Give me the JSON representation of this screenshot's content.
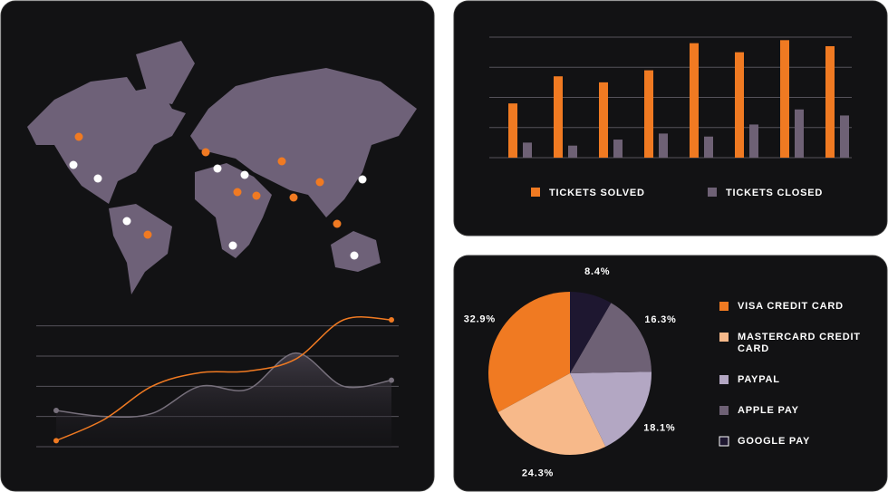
{
  "chart_data": [
    {
      "type": "line",
      "categories": [
        null,
        null,
        null,
        null,
        null,
        null,
        null,
        null
      ],
      "series": [
        {
          "color": "#f07a22",
          "values": [
            0.2,
            0.9,
            2.0,
            2.45,
            2.5,
            2.9,
            4.2,
            4.2
          ]
        },
        {
          "color": "#77707c",
          "values": [
            1.2,
            1.0,
            1.1,
            2.0,
            1.9,
            3.1,
            2.0,
            2.2
          ]
        }
      ],
      "ylim": [
        0,
        4.5
      ],
      "yticks": [
        0,
        1,
        2,
        3,
        4
      ],
      "grid": true
    },
    {
      "type": "bar",
      "categories": [
        null,
        null,
        null,
        null,
        null,
        null,
        null,
        null
      ],
      "series": [
        {
          "name": "TICKETS SOLVED",
          "color": "#f07a22",
          "values": [
            1.8,
            2.7,
            2.5,
            2.9,
            3.8,
            3.5,
            3.9,
            3.7
          ]
        },
        {
          "name": "TICKETS CLOSED",
          "color": "#6e6175",
          "values": [
            0.5,
            0.4,
            0.6,
            0.8,
            0.7,
            1.1,
            1.6,
            1.4
          ]
        }
      ],
      "ylim": [
        0,
        4
      ],
      "yticks": [
        0,
        1,
        2,
        3,
        4
      ],
      "grid": true,
      "legend": "bottom"
    },
    {
      "type": "pie",
      "categories": [
        "VISA CREDIT CARD",
        "MASTERCARD CREDIT CARD",
        "PAYPAL",
        "APPLE PAY",
        "GOOGLE PAY"
      ],
      "values": [
        32.9,
        24.3,
        18.1,
        16.3,
        8.4
      ],
      "value_labels": [
        "32.9%",
        "24.3%",
        "18.1%",
        "16.3%",
        "8.4%"
      ],
      "colors": [
        "#f07a22",
        "#f7b98a",
        "#b3a7c3",
        "#6e6175",
        "#1e1730"
      ],
      "legend": "right"
    }
  ]
}
